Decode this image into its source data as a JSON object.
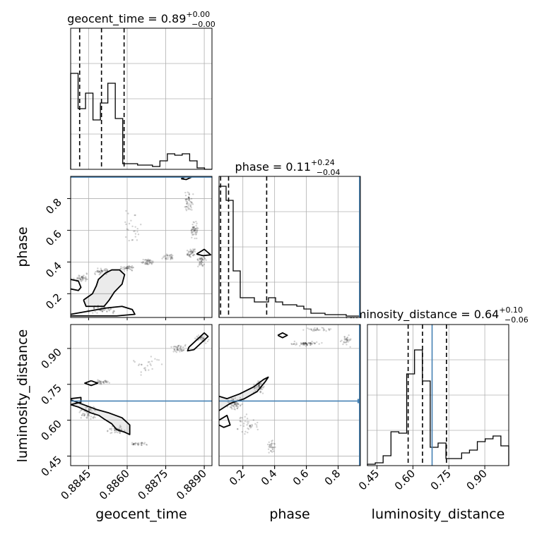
{
  "chart_data": {
    "type": "corner",
    "parameters": [
      "geocent_time",
      "phase",
      "luminosity_distance"
    ],
    "colors": {
      "truth": "#4682b4",
      "hist": "#000000",
      "grid": "#b0b0b0"
    },
    "titles": [
      {
        "param": "geocent_time",
        "name": "geocent_time",
        "value": "0.89",
        "plus": "+0.00",
        "minus": "−0.00"
      },
      {
        "param": "phase",
        "name": "phase",
        "value": "0.11",
        "plus": "+0.24",
        "minus": "−0.04"
      },
      {
        "param": "luminosity_distance",
        "name": "luminosity_distance",
        "value": "0.64",
        "plus": "+0.10",
        "minus": "−0.06"
      }
    ],
    "axes": {
      "geocent_time": {
        "label": "geocent_time",
        "range": [
          0.8838,
          0.8893
        ],
        "ticks": [
          0.8845,
          0.886,
          0.8875,
          0.889
        ],
        "tick_labels": [
          "0.8845",
          "0.8860",
          "0.8875",
          "0.8890"
        ]
      },
      "phase": {
        "label": "phase",
        "range": [
          0.05,
          0.94
        ],
        "ticks": [
          0.2,
          0.4,
          0.6,
          0.8
        ],
        "tick_labels": [
          "0.2",
          "0.4",
          "0.6",
          "0.8"
        ]
      },
      "luminosity_distance": {
        "label": "luminosity_distance",
        "range": [
          0.41,
          1.0
        ],
        "ticks": [
          0.45,
          0.6,
          0.75,
          0.9
        ],
        "tick_labels": [
          "0.45",
          "0.60",
          "0.75",
          "0.90"
        ]
      }
    },
    "truths": {
      "phase": 0.935,
      "luminosity_distance": 0.68
    },
    "quantiles": {
      "geocent_time": [
        0.88415,
        0.885,
        0.88588
      ],
      "phase": [
        0.06,
        0.11,
        0.35
      ],
      "luminosity_distance": [
        0.58,
        0.64,
        0.74
      ]
    },
    "histograms": {
      "geocent_time": {
        "edges_range": [
          0.8838,
          0.8893
        ],
        "counts": [
          0.68,
          0.43,
          0.54,
          0.35,
          0.47,
          0.61,
          0.36,
          0.04,
          0.04,
          0.03,
          0.03,
          0.02,
          0.06,
          0.11,
          0.1,
          0.11,
          0.06,
          0.01,
          0.0
        ]
      },
      "phase": {
        "edges_range": [
          0.05,
          0.94
        ],
        "counts": [
          0.93,
          0.83,
          0.33,
          0.14,
          0.14,
          0.11,
          0.11,
          0.14,
          0.11,
          0.09,
          0.09,
          0.08,
          0.06,
          0.03,
          0.03,
          0.02,
          0.02,
          0.02,
          0.01,
          0.01
        ]
      },
      "luminosity_distance": {
        "edges_range": [
          0.41,
          1.0
        ],
        "counts": [
          0.01,
          0.02,
          0.07,
          0.24,
          0.23,
          0.65,
          0.82,
          0.6,
          0.13,
          0.16,
          0.05,
          0.05,
          0.09,
          0.11,
          0.17,
          0.19,
          0.21,
          0.14
        ]
      }
    },
    "contours": {
      "geocent_time_phase": [
        [
          [
            0.8843,
            0.16
          ],
          [
            0.88465,
            0.2
          ],
          [
            0.8848,
            0.25
          ],
          [
            0.88488,
            0.29
          ],
          [
            0.88515,
            0.33
          ],
          [
            0.8854,
            0.35
          ],
          [
            0.8857,
            0.35
          ],
          [
            0.8859,
            0.32
          ],
          [
            0.8858,
            0.26
          ],
          [
            0.8855,
            0.21
          ],
          [
            0.8853,
            0.16
          ],
          [
            0.8851,
            0.12
          ],
          [
            0.88485,
            0.12
          ],
          [
            0.8844,
            0.12
          ],
          [
            0.8843,
            0.16
          ]
        ],
        [
          [
            0.8838,
            0.29
          ],
          [
            0.8841,
            0.28
          ],
          [
            0.8842,
            0.24
          ],
          [
            0.8841,
            0.22
          ],
          [
            0.8838,
            0.23
          ]
        ],
        [
          [
            0.8838,
            0.07
          ],
          [
            0.8845,
            0.09
          ],
          [
            0.8852,
            0.11
          ],
          [
            0.8858,
            0.12
          ],
          [
            0.8862,
            0.1
          ],
          [
            0.8863,
            0.07
          ],
          [
            0.8856,
            0.06
          ],
          [
            0.8845,
            0.06
          ],
          [
            0.8838,
            0.06
          ]
        ],
        [
          [
            0.8887,
            0.45
          ],
          [
            0.889,
            0.48
          ],
          [
            0.88925,
            0.445
          ],
          [
            0.88895,
            0.44
          ],
          [
            0.8887,
            0.45
          ]
        ],
        [
          [
            0.8881,
            0.925
          ],
          [
            0.8883,
            0.94
          ],
          [
            0.8885,
            0.935
          ],
          [
            0.8883,
            0.92
          ],
          [
            0.8881,
            0.925
          ]
        ]
      ],
      "geocent_time_luminosity_distance": [
        [
          [
            0.8838,
            0.665
          ],
          [
            0.8841,
            0.655
          ],
          [
            0.8846,
            0.63
          ],
          [
            0.8849,
            0.62
          ],
          [
            0.8851,
            0.605
          ],
          [
            0.8854,
            0.585
          ],
          [
            0.8856,
            0.56
          ],
          [
            0.8859,
            0.55
          ],
          [
            0.8861,
            0.54
          ],
          [
            0.8861,
            0.58
          ],
          [
            0.8858,
            0.61
          ],
          [
            0.8853,
            0.63
          ],
          [
            0.8848,
            0.645
          ],
          [
            0.8843,
            0.665
          ],
          [
            0.8838,
            0.685
          ]
        ],
        [
          [
            0.8838,
            0.69
          ],
          [
            0.8842,
            0.695
          ],
          [
            0.8842,
            0.675
          ],
          [
            0.8838,
            0.665
          ]
        ],
        [
          [
            0.8846,
            0.765
          ],
          [
            0.88485,
            0.755
          ],
          [
            0.8846,
            0.745
          ],
          [
            0.88435,
            0.755
          ],
          [
            0.8846,
            0.765
          ]
        ],
        [
          [
            0.8884,
            0.905
          ],
          [
            0.88875,
            0.94
          ],
          [
            0.889,
            0.965
          ],
          [
            0.88915,
            0.95
          ],
          [
            0.88885,
            0.92
          ],
          [
            0.8886,
            0.895
          ],
          [
            0.88835,
            0.89
          ],
          [
            0.8884,
            0.905
          ]
        ]
      ],
      "phase_luminosity_distance": [
        [
          [
            0.05,
            0.64
          ],
          [
            0.12,
            0.67
          ],
          [
            0.21,
            0.69
          ],
          [
            0.29,
            0.72
          ],
          [
            0.34,
            0.76
          ],
          [
            0.36,
            0.78
          ],
          [
            0.33,
            0.77
          ],
          [
            0.27,
            0.74
          ],
          [
            0.18,
            0.71
          ],
          [
            0.1,
            0.69
          ],
          [
            0.05,
            0.7
          ]
        ],
        [
          [
            0.05,
            0.6
          ],
          [
            0.1,
            0.62
          ],
          [
            0.12,
            0.58
          ],
          [
            0.08,
            0.57
          ],
          [
            0.05,
            0.58
          ]
        ],
        [
          [
            0.42,
            0.955
          ],
          [
            0.45,
            0.965
          ],
          [
            0.48,
            0.955
          ],
          [
            0.45,
            0.945
          ],
          [
            0.42,
            0.955
          ]
        ]
      ]
    }
  }
}
